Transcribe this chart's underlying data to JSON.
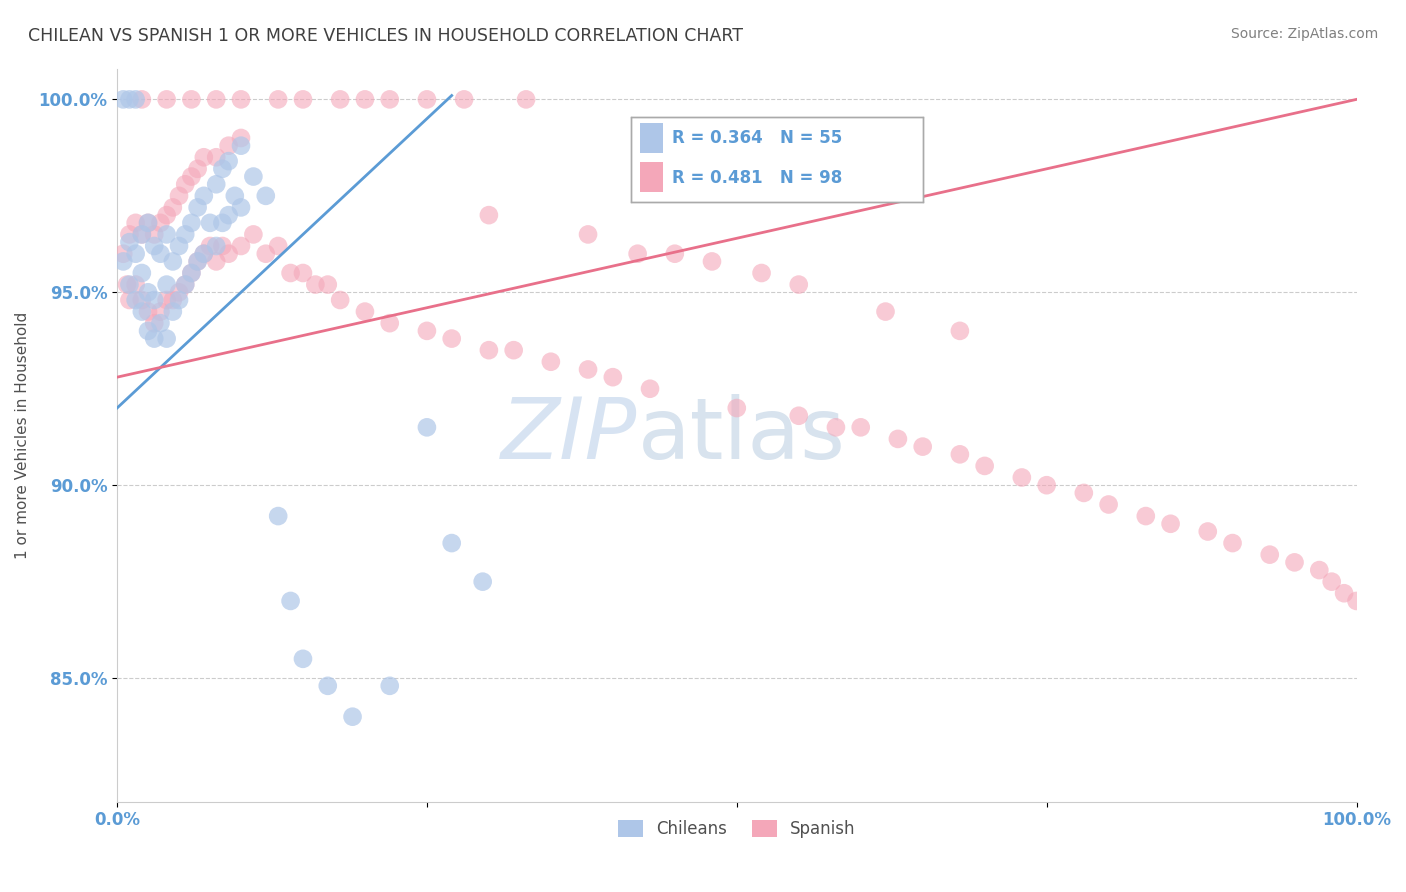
{
  "title": "CHILEAN VS SPANISH 1 OR MORE VEHICLES IN HOUSEHOLD CORRELATION CHART",
  "source": "Source: ZipAtlas.com",
  "ylabel": "1 or more Vehicles in Household",
  "xlabel": "",
  "xlim": [
    0.0,
    1.0
  ],
  "ylim": [
    0.818,
    1.008
  ],
  "yticks": [
    0.85,
    0.9,
    0.95,
    1.0
  ],
  "ytick_labels": [
    "85.0%",
    "90.0%",
    "95.0%",
    "100.0%"
  ],
  "xticks": [
    0.0,
    0.25,
    0.5,
    0.75,
    1.0
  ],
  "xtick_labels": [
    "0.0%",
    "",
    "",
    "",
    "100.0%"
  ],
  "legend_items": [
    {
      "label": "Chileans",
      "color": "#aec6e8"
    },
    {
      "label": "Spanish",
      "color": "#f4a7b9"
    }
  ],
  "annotation_blue_r": "0.364",
  "annotation_blue_n": "55",
  "annotation_pink_r": "0.481",
  "annotation_pink_n": "98",
  "blue_color": "#5b9bd5",
  "pink_line_color": "#e8708a",
  "marker_blue": "#aec6e8",
  "marker_pink": "#f4a7b9",
  "background_color": "#ffffff",
  "grid_color": "#cccccc",
  "watermark_color": "#d0dff0",
  "title_color": "#404040",
  "axis_label_color": "#505050",
  "tick_color": "#5b9bd5",
  "source_color": "#808080",
  "blue_points_x": [
    0.005,
    0.01,
    0.01,
    0.015,
    0.015,
    0.02,
    0.02,
    0.02,
    0.025,
    0.025,
    0.025,
    0.03,
    0.03,
    0.03,
    0.035,
    0.035,
    0.04,
    0.04,
    0.04,
    0.045,
    0.045,
    0.05,
    0.05,
    0.055,
    0.055,
    0.06,
    0.06,
    0.065,
    0.065,
    0.07,
    0.07,
    0.075,
    0.08,
    0.08,
    0.085,
    0.085,
    0.09,
    0.09,
    0.095,
    0.1,
    0.1,
    0.11,
    0.12,
    0.13,
    0.14,
    0.15,
    0.17,
    0.19,
    0.22,
    0.25,
    0.27,
    0.295,
    0.005,
    0.01,
    0.015
  ],
  "blue_points_y": [
    0.958,
    0.952,
    0.963,
    0.948,
    0.96,
    0.945,
    0.955,
    0.965,
    0.94,
    0.95,
    0.968,
    0.938,
    0.948,
    0.962,
    0.942,
    0.96,
    0.938,
    0.952,
    0.965,
    0.945,
    0.958,
    0.948,
    0.962,
    0.952,
    0.965,
    0.955,
    0.968,
    0.958,
    0.972,
    0.96,
    0.975,
    0.968,
    0.962,
    0.978,
    0.968,
    0.982,
    0.97,
    0.984,
    0.975,
    0.972,
    0.988,
    0.98,
    0.975,
    0.892,
    0.87,
    0.855,
    0.848,
    0.84,
    0.848,
    0.915,
    0.885,
    0.875,
    1.0,
    1.0,
    1.0
  ],
  "pink_points_x": [
    0.005,
    0.008,
    0.01,
    0.01,
    0.015,
    0.015,
    0.02,
    0.02,
    0.025,
    0.025,
    0.03,
    0.03,
    0.035,
    0.035,
    0.04,
    0.04,
    0.045,
    0.045,
    0.05,
    0.05,
    0.055,
    0.055,
    0.06,
    0.06,
    0.065,
    0.065,
    0.07,
    0.07,
    0.075,
    0.08,
    0.08,
    0.085,
    0.09,
    0.09,
    0.1,
    0.1,
    0.11,
    0.12,
    0.13,
    0.14,
    0.15,
    0.16,
    0.17,
    0.18,
    0.2,
    0.22,
    0.25,
    0.27,
    0.3,
    0.32,
    0.35,
    0.38,
    0.4,
    0.43,
    0.5,
    0.55,
    0.58,
    0.6,
    0.63,
    0.65,
    0.68,
    0.7,
    0.73,
    0.75,
    0.78,
    0.8,
    0.83,
    0.85,
    0.88,
    0.9,
    0.93,
    0.95,
    0.97,
    0.98,
    0.99,
    1.0,
    0.42,
    0.48,
    0.55,
    0.62,
    0.68,
    0.3,
    0.38,
    0.45,
    0.52,
    0.28,
    0.33,
    0.22,
    0.25,
    0.18,
    0.2,
    0.15,
    0.13,
    0.1,
    0.08,
    0.06,
    0.04,
    0.02
  ],
  "pink_points_y": [
    0.96,
    0.952,
    0.948,
    0.965,
    0.952,
    0.968,
    0.948,
    0.965,
    0.945,
    0.968,
    0.942,
    0.965,
    0.945,
    0.968,
    0.948,
    0.97,
    0.948,
    0.972,
    0.95,
    0.975,
    0.952,
    0.978,
    0.955,
    0.98,
    0.958,
    0.982,
    0.96,
    0.985,
    0.962,
    0.958,
    0.985,
    0.962,
    0.96,
    0.988,
    0.962,
    0.99,
    0.965,
    0.96,
    0.962,
    0.955,
    0.955,
    0.952,
    0.952,
    0.948,
    0.945,
    0.942,
    0.94,
    0.938,
    0.935,
    0.935,
    0.932,
    0.93,
    0.928,
    0.925,
    0.92,
    0.918,
    0.915,
    0.915,
    0.912,
    0.91,
    0.908,
    0.905,
    0.902,
    0.9,
    0.898,
    0.895,
    0.892,
    0.89,
    0.888,
    0.885,
    0.882,
    0.88,
    0.878,
    0.875,
    0.872,
    0.87,
    0.96,
    0.958,
    0.952,
    0.945,
    0.94,
    0.97,
    0.965,
    0.96,
    0.955,
    1.0,
    1.0,
    1.0,
    1.0,
    1.0,
    1.0,
    1.0,
    1.0,
    1.0,
    1.0,
    1.0,
    1.0,
    1.0
  ]
}
